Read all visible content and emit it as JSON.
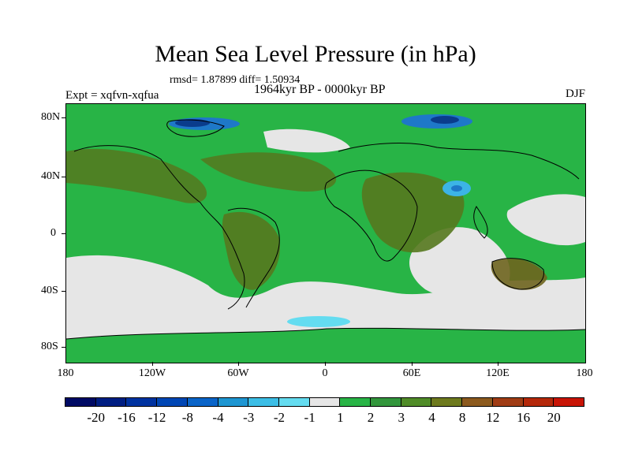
{
  "title": "Mean Sea Level Pressure (in hPa)",
  "stats": "rmsd= 1.87899  diff= 1.50934",
  "experiment": "Expt = xqfvn-xqfua",
  "period": "1964kyr BP - 0000kyr BP",
  "season": "DJF",
  "map": {
    "lat_labels": [
      "80N",
      "40N",
      "0",
      "40S",
      "80S"
    ],
    "lon_labels": [
      "180",
      "120W",
      "60W",
      "0",
      "60E",
      "120E",
      "180"
    ],
    "field_colors": {
      "neg_strong": "#0a3c8c",
      "neg_mid": "#1e78c8",
      "neg_light": "#3cb4e6",
      "neg_faint": "#64dcf0",
      "near_zero": "#e6e6e6",
      "pos_1_2": "#28b446",
      "pos_2_3": "#288c32",
      "pos_3_4": "#55781e",
      "pos_4_8": "#6e641e"
    }
  },
  "colorbar": {
    "colors": [
      "#000a64",
      "#001e82",
      "#0032a0",
      "#0046b4",
      "#0a64c8",
      "#1e96d2",
      "#3cbee6",
      "#64dcf0",
      "#e6e6e6",
      "#28b446",
      "#32963c",
      "#508c28",
      "#6e7a1e",
      "#8c5a1e",
      "#a03c14",
      "#b4280a",
      "#c81405"
    ],
    "labels": [
      "-20",
      "-16",
      "-12",
      "-8",
      "-4",
      "-3",
      "-2",
      "-1",
      "1",
      "2",
      "3",
      "4",
      "8",
      "12",
      "16",
      "20"
    ]
  }
}
